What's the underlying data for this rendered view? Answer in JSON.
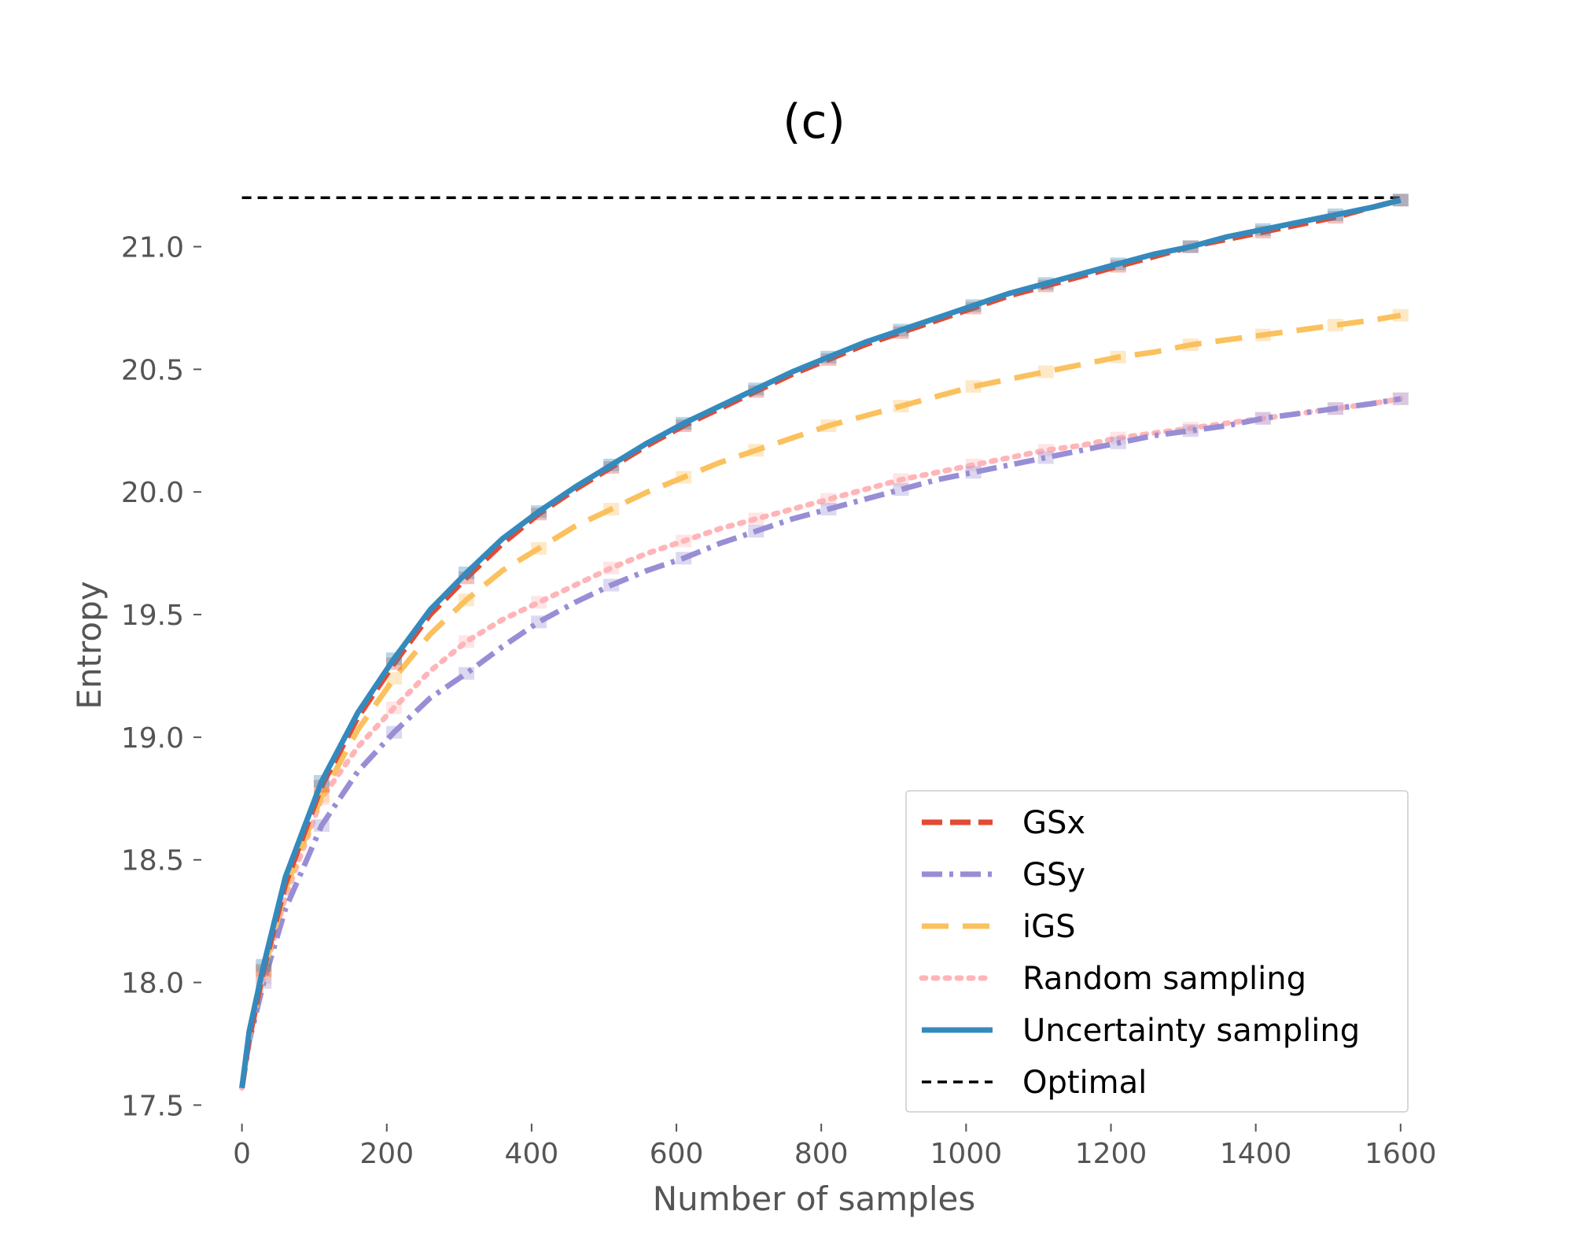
{
  "chart_data": {
    "type": "line",
    "title": "(c)",
    "xlabel": "Number of samples",
    "ylabel": "Entropy",
    "xlim": [
      -30,
      1610
    ],
    "ylim": [
      17.45,
      21.3
    ],
    "xticks": [
      0,
      200,
      400,
      600,
      800,
      1000,
      1200,
      1400,
      1600
    ],
    "yticks": [
      17.5,
      18.0,
      18.5,
      19.0,
      19.5,
      20.0,
      20.5,
      21.0
    ],
    "ytick_labels": [
      "17.5",
      "18.0",
      "18.5",
      "19.0",
      "19.5",
      "20.0",
      "20.5",
      "21.0"
    ],
    "grid": false,
    "legend_position": "lower-right",
    "series": [
      {
        "name": "GSx",
        "color": "#e24a33",
        "dash": "dashed",
        "x": [
          0,
          10,
          30,
          60,
          110,
          160,
          210,
          260,
          310,
          360,
          410,
          460,
          510,
          560,
          610,
          660,
          710,
          760,
          810,
          860,
          910,
          960,
          1010,
          1060,
          1110,
          1160,
          1210,
          1260,
          1310,
          1360,
          1410,
          1460,
          1510,
          1560,
          1600
        ],
        "y": [
          17.57,
          17.77,
          18.05,
          18.4,
          18.8,
          19.08,
          19.3,
          19.5,
          19.65,
          19.79,
          19.91,
          20.01,
          20.1,
          20.19,
          20.27,
          20.34,
          20.41,
          20.48,
          20.54,
          20.6,
          20.65,
          20.7,
          20.75,
          20.8,
          20.84,
          20.88,
          20.92,
          20.96,
          21.0,
          21.03,
          21.06,
          21.09,
          21.12,
          21.16,
          21.19
        ]
      },
      {
        "name": "GSy",
        "color": "#988ed5",
        "dash": "dashdot",
        "x": [
          0,
          10,
          30,
          60,
          110,
          160,
          210,
          260,
          310,
          360,
          410,
          460,
          510,
          560,
          610,
          660,
          710,
          760,
          810,
          860,
          910,
          960,
          1010,
          1060,
          1110,
          1160,
          1210,
          1260,
          1310,
          1360,
          1410,
          1460,
          1510,
          1560,
          1600
        ],
        "y": [
          17.57,
          17.76,
          18.0,
          18.3,
          18.64,
          18.86,
          19.02,
          19.16,
          19.26,
          19.37,
          19.47,
          19.55,
          19.62,
          19.68,
          19.73,
          19.79,
          19.84,
          19.89,
          19.93,
          19.97,
          20.01,
          20.05,
          20.08,
          20.11,
          20.14,
          20.17,
          20.2,
          20.23,
          20.25,
          20.27,
          20.3,
          20.32,
          20.34,
          20.36,
          20.38
        ]
      },
      {
        "name": "iGS",
        "color": "#fbc15e",
        "dash": "longdash",
        "x": [
          0,
          10,
          30,
          60,
          110,
          160,
          210,
          260,
          310,
          360,
          410,
          460,
          510,
          560,
          610,
          660,
          710,
          760,
          810,
          860,
          910,
          960,
          1010,
          1060,
          1110,
          1160,
          1210,
          1260,
          1310,
          1360,
          1410,
          1460,
          1510,
          1560,
          1600
        ],
        "y": [
          17.57,
          17.78,
          18.04,
          18.38,
          18.76,
          19.03,
          19.24,
          19.42,
          19.56,
          19.68,
          19.77,
          19.86,
          19.93,
          20.0,
          20.06,
          20.12,
          20.17,
          20.22,
          20.27,
          20.31,
          20.35,
          20.39,
          20.43,
          20.46,
          20.49,
          20.52,
          20.55,
          20.57,
          20.6,
          20.62,
          20.64,
          20.66,
          20.68,
          20.7,
          20.72
        ]
      },
      {
        "name": "Random sampling",
        "color": "#ffb5b8",
        "dash": "dotted",
        "x": [
          0,
          10,
          30,
          60,
          110,
          160,
          210,
          260,
          310,
          360,
          410,
          460,
          510,
          560,
          610,
          660,
          710,
          760,
          810,
          860,
          910,
          960,
          1010,
          1060,
          1110,
          1160,
          1210,
          1260,
          1310,
          1360,
          1410,
          1460,
          1510,
          1560,
          1600
        ],
        "y": [
          17.57,
          17.77,
          18.02,
          18.35,
          18.75,
          18.96,
          19.12,
          19.27,
          19.39,
          19.48,
          19.55,
          19.62,
          19.69,
          19.75,
          19.8,
          19.85,
          19.89,
          19.93,
          19.97,
          20.01,
          20.05,
          20.08,
          20.11,
          20.14,
          20.17,
          20.19,
          20.22,
          20.24,
          20.26,
          20.28,
          20.3,
          20.32,
          20.34,
          20.36,
          20.38
        ]
      },
      {
        "name": "Uncertainty sampling",
        "color": "#348abd",
        "dash": "solid",
        "x": [
          0,
          10,
          30,
          60,
          110,
          160,
          210,
          260,
          310,
          360,
          410,
          460,
          510,
          560,
          610,
          660,
          710,
          760,
          810,
          860,
          910,
          960,
          1010,
          1060,
          1110,
          1160,
          1210,
          1260,
          1310,
          1360,
          1410,
          1460,
          1510,
          1560,
          1600
        ],
        "y": [
          17.57,
          17.8,
          18.07,
          18.43,
          18.82,
          19.1,
          19.32,
          19.52,
          19.67,
          19.81,
          19.92,
          20.02,
          20.11,
          20.2,
          20.28,
          20.35,
          20.42,
          20.49,
          20.55,
          20.61,
          20.66,
          20.71,
          20.76,
          20.81,
          20.85,
          20.89,
          20.93,
          20.97,
          21.0,
          21.04,
          21.07,
          21.1,
          21.13,
          21.16,
          21.19
        ]
      },
      {
        "name": "Optimal",
        "color": "#000000",
        "dash": "shortdash",
        "x": [
          0,
          1600
        ],
        "y": [
          21.2,
          21.2
        ]
      }
    ]
  }
}
